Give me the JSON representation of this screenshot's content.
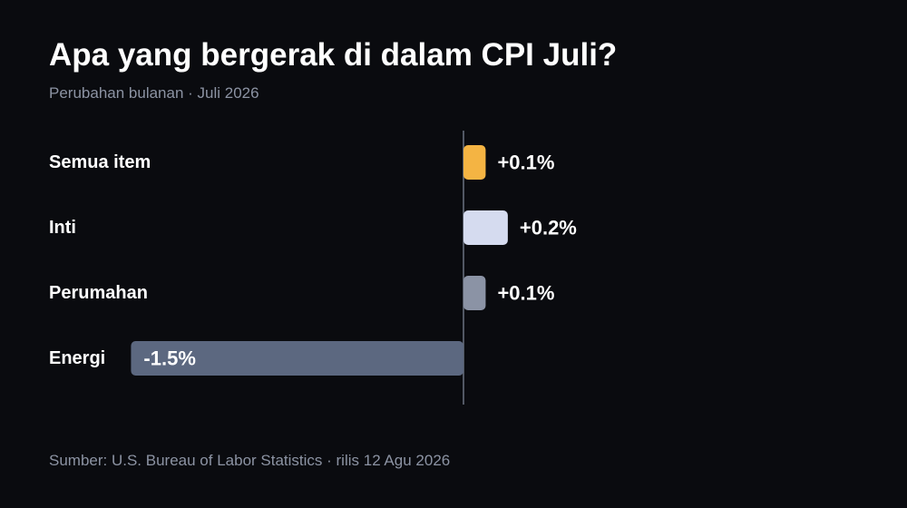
{
  "title": "Apa yang bergerak di dalam CPI Juli?",
  "subtitle": "Perubahan bulanan · Juli 2026",
  "footer": "Sumber: U.S. Bureau of Labor Statistics · rilis 12 Agu 2026",
  "colors": {
    "background": "#0a0b0f",
    "text": "#ffffff",
    "muted": "#8c93a3",
    "axis": "#6b7280"
  },
  "chart_data": {
    "type": "bar",
    "orientation": "horizontal",
    "unit": "%",
    "categories": [
      "Semua item",
      "Inti",
      "Perumahan",
      "Energi"
    ],
    "values": [
      0.1,
      0.2,
      0.1,
      -1.5
    ],
    "value_labels": [
      "+0.1%",
      "+0.2%",
      "+0.1%",
      "-1.5%"
    ],
    "colors": [
      "#f4b443",
      "#d5dbef",
      "#8b93a5",
      "#5c6880"
    ],
    "xlim": [
      -1.87,
      1.87
    ],
    "zero_line": true,
    "grid": false,
    "legend": "none"
  }
}
